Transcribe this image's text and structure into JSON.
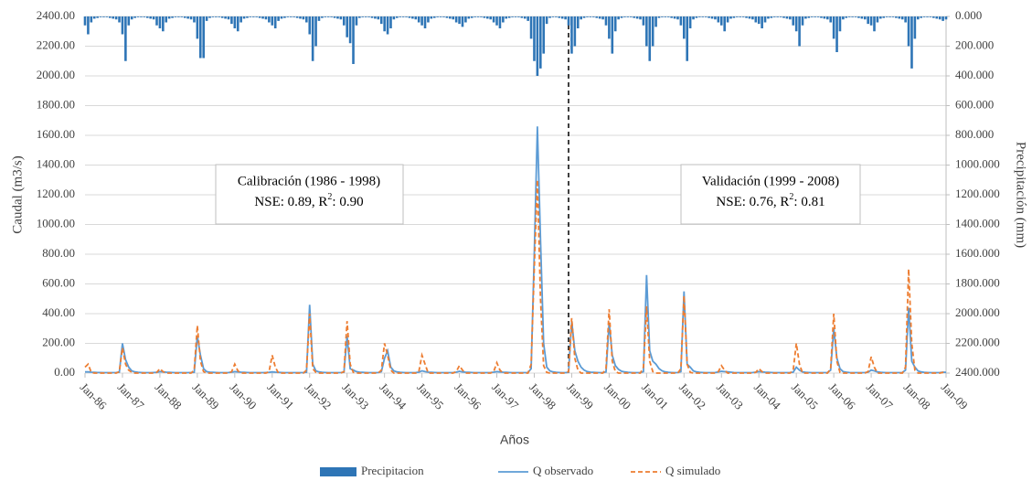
{
  "chart_data": {
    "type": "bar-line",
    "x_label": "Años",
    "y_label": "Caudal (m3/s)",
    "y2_label": "Precipitación (mm)",
    "annotations": [
      {
        "title": "Calibración (1986 - 1998)",
        "stats": [
          "NSE: 0.89, R",
          "2",
          ": 0.90"
        ]
      },
      {
        "title": "Validación (1999 - 2008)",
        "stats": [
          "NSE: 0.76, R",
          "2",
          ": 0.81"
        ]
      }
    ],
    "categories": [
      "Jan-86",
      null,
      null,
      null,
      null,
      null,
      null,
      null,
      null,
      null,
      null,
      null,
      "Jan-87",
      null,
      null,
      null,
      null,
      null,
      null,
      null,
      null,
      null,
      null,
      null,
      "Jan-88",
      null,
      null,
      null,
      null,
      null,
      null,
      null,
      null,
      null,
      null,
      null,
      "Jan-89",
      null,
      null,
      null,
      null,
      null,
      null,
      null,
      null,
      null,
      null,
      null,
      "Jan-90",
      null,
      null,
      null,
      null,
      null,
      null,
      null,
      null,
      null,
      null,
      null,
      "Jan-91",
      null,
      null,
      null,
      null,
      null,
      null,
      null,
      null,
      null,
      null,
      null,
      "Jan-92",
      null,
      null,
      null,
      null,
      null,
      null,
      null,
      null,
      null,
      null,
      null,
      "Jan-93",
      null,
      null,
      null,
      null,
      null,
      null,
      null,
      null,
      null,
      null,
      null,
      "Jan-94",
      null,
      null,
      null,
      null,
      null,
      null,
      null,
      null,
      null,
      null,
      null,
      "Jan-95",
      null,
      null,
      null,
      null,
      null,
      null,
      null,
      null,
      null,
      null,
      null,
      "Jan-96",
      null,
      null,
      null,
      null,
      null,
      null,
      null,
      null,
      null,
      null,
      null,
      "Jan-97",
      null,
      null,
      null,
      null,
      null,
      null,
      null,
      null,
      null,
      null,
      null,
      "Jan-98",
      null,
      null,
      null,
      null,
      null,
      null,
      null,
      null,
      null,
      null,
      null,
      "Jan-99",
      null,
      null,
      null,
      null,
      null,
      null,
      null,
      null,
      null,
      null,
      null,
      "Jan-00",
      null,
      null,
      null,
      null,
      null,
      null,
      null,
      null,
      null,
      null,
      null,
      "Jan-01",
      null,
      null,
      null,
      null,
      null,
      null,
      null,
      null,
      null,
      null,
      null,
      "Jan-02",
      null,
      null,
      null,
      null,
      null,
      null,
      null,
      null,
      null,
      null,
      null,
      "Jan-03",
      null,
      null,
      null,
      null,
      null,
      null,
      null,
      null,
      null,
      null,
      null,
      "Jan-04",
      null,
      null,
      null,
      null,
      null,
      null,
      null,
      null,
      null,
      null,
      null,
      "Jan-05",
      null,
      null,
      null,
      null,
      null,
      null,
      null,
      null,
      null,
      null,
      null,
      "Jan-06",
      null,
      null,
      null,
      null,
      null,
      null,
      null,
      null,
      null,
      null,
      null,
      "Jan-07",
      null,
      null,
      null,
      null,
      null,
      null,
      null,
      null,
      null,
      null,
      null,
      "Jan-08",
      null,
      null,
      null,
      null,
      null,
      null,
      null,
      null,
      null,
      null,
      null,
      "Jan-09"
    ],
    "series": [
      {
        "name": "Precipitacion",
        "kind": "bar",
        "axis": "y2",
        "color": "#2e75b6",
        "values": [
          60,
          120,
          40,
          15,
          10,
          5,
          5,
          5,
          10,
          15,
          20,
          40,
          120,
          300,
          60,
          20,
          10,
          5,
          5,
          5,
          10,
          15,
          20,
          60,
          80,
          100,
          40,
          15,
          10,
          5,
          5,
          5,
          10,
          15,
          20,
          40,
          150,
          280,
          280,
          30,
          10,
          5,
          5,
          5,
          10,
          15,
          20,
          50,
          80,
          100,
          40,
          15,
          10,
          5,
          5,
          5,
          10,
          15,
          20,
          40,
          60,
          80,
          30,
          15,
          10,
          5,
          5,
          5,
          10,
          15,
          20,
          40,
          120,
          300,
          200,
          30,
          10,
          5,
          5,
          5,
          10,
          15,
          20,
          60,
          140,
          180,
          320,
          60,
          10,
          5,
          5,
          5,
          10,
          15,
          20,
          50,
          100,
          120,
          80,
          20,
          10,
          5,
          5,
          5,
          10,
          15,
          20,
          40,
          60,
          80,
          40,
          15,
          10,
          5,
          5,
          5,
          10,
          15,
          20,
          40,
          50,
          70,
          40,
          15,
          10,
          5,
          5,
          5,
          10,
          15,
          20,
          40,
          60,
          80,
          40,
          15,
          10,
          5,
          5,
          5,
          10,
          15,
          30,
          150,
          300,
          400,
          350,
          250,
          50,
          10,
          5,
          5,
          10,
          15,
          20,
          60,
          250,
          200,
          80,
          20,
          10,
          5,
          5,
          5,
          10,
          15,
          20,
          60,
          150,
          250,
          100,
          20,
          10,
          5,
          5,
          5,
          10,
          15,
          20,
          60,
          200,
          300,
          200,
          70,
          10,
          5,
          5,
          5,
          10,
          15,
          20,
          60,
          150,
          300,
          80,
          20,
          10,
          5,
          5,
          5,
          10,
          15,
          20,
          40,
          60,
          100,
          40,
          15,
          10,
          5,
          5,
          5,
          10,
          15,
          20,
          40,
          50,
          80,
          40,
          15,
          10,
          5,
          5,
          5,
          10,
          15,
          20,
          60,
          100,
          200,
          60,
          15,
          10,
          5,
          5,
          5,
          10,
          15,
          20,
          40,
          150,
          240,
          100,
          20,
          10,
          5,
          5,
          5,
          10,
          15,
          20,
          50,
          60,
          100,
          40,
          15,
          10,
          5,
          5,
          5,
          10,
          15,
          20,
          40,
          200,
          350,
          150,
          20,
          10,
          5,
          5,
          5,
          10,
          15,
          20,
          30,
          20
        ]
      },
      {
        "name": "Q observado",
        "kind": "line",
        "color": "#5b9bd5",
        "values": [
          8,
          8,
          6,
          5,
          4,
          4,
          3,
          3,
          3,
          3,
          4,
          6,
          200,
          90,
          40,
          15,
          8,
          5,
          4,
          3,
          3,
          3,
          4,
          5,
          10,
          8,
          6,
          5,
          4,
          3,
          3,
          3,
          3,
          3,
          4,
          5,
          250,
          120,
          30,
          10,
          6,
          5,
          4,
          3,
          3,
          3,
          4,
          6,
          10,
          8,
          6,
          5,
          4,
          3,
          3,
          3,
          3,
          3,
          4,
          5,
          8,
          6,
          5,
          4,
          3,
          3,
          3,
          3,
          3,
          3,
          4,
          6,
          460,
          60,
          15,
          8,
          5,
          4,
          3,
          3,
          3,
          3,
          4,
          6,
          250,
          30,
          20,
          10,
          6,
          5,
          4,
          3,
          3,
          3,
          4,
          10,
          100,
          150,
          40,
          15,
          8,
          5,
          4,
          3,
          3,
          3,
          4,
          6,
          15,
          10,
          6,
          5,
          4,
          3,
          3,
          3,
          3,
          3,
          4,
          6,
          12,
          8,
          6,
          5,
          4,
          3,
          3,
          3,
          3,
          3,
          4,
          6,
          10,
          8,
          6,
          5,
          4,
          3,
          3,
          3,
          3,
          3,
          4,
          30,
          800,
          1660,
          900,
          200,
          40,
          15,
          8,
          5,
          4,
          3,
          3,
          5,
          350,
          150,
          80,
          40,
          20,
          10,
          6,
          5,
          4,
          3,
          4,
          8,
          340,
          120,
          50,
          25,
          12,
          8,
          5,
          4,
          3,
          3,
          4,
          10,
          660,
          150,
          80,
          60,
          30,
          15,
          8,
          5,
          4,
          3,
          4,
          10,
          550,
          60,
          40,
          15,
          8,
          5,
          4,
          3,
          3,
          3,
          4,
          8,
          12,
          10,
          8,
          6,
          4,
          3,
          3,
          3,
          3,
          3,
          4,
          6,
          10,
          8,
          6,
          5,
          4,
          3,
          3,
          3,
          3,
          3,
          4,
          6,
          40,
          20,
          8,
          5,
          4,
          3,
          3,
          3,
          3,
          3,
          4,
          20,
          300,
          100,
          30,
          10,
          6,
          4,
          3,
          3,
          3,
          3,
          4,
          6,
          20,
          15,
          8,
          5,
          4,
          3,
          3,
          3,
          3,
          3,
          4,
          20,
          440,
          80,
          40,
          15,
          8,
          5,
          4,
          3,
          3,
          3,
          4,
          6,
          5
        ]
      },
      {
        "name": "Q simulado",
        "kind": "dashed-line",
        "color": "#ed7d31",
        "values": [
          40,
          60,
          5,
          0,
          0,
          0,
          0,
          0,
          0,
          0,
          0,
          10,
          170,
          60,
          20,
          5,
          0,
          0,
          0,
          0,
          0,
          0,
          0,
          5,
          30,
          10,
          0,
          0,
          0,
          0,
          0,
          0,
          0,
          0,
          0,
          20,
          320,
          80,
          10,
          0,
          0,
          0,
          0,
          0,
          0,
          0,
          0,
          10,
          60,
          15,
          0,
          0,
          0,
          0,
          0,
          0,
          0,
          0,
          0,
          10,
          120,
          40,
          0,
          0,
          0,
          0,
          0,
          0,
          0,
          0,
          0,
          20,
          400,
          30,
          5,
          0,
          0,
          0,
          0,
          0,
          0,
          0,
          0,
          10,
          350,
          60,
          5,
          0,
          0,
          0,
          0,
          0,
          0,
          0,
          0,
          20,
          200,
          120,
          20,
          0,
          0,
          0,
          0,
          0,
          0,
          0,
          0,
          10,
          120,
          60,
          0,
          0,
          0,
          0,
          0,
          0,
          0,
          0,
          0,
          10,
          50,
          20,
          0,
          0,
          0,
          0,
          0,
          0,
          0,
          0,
          0,
          10,
          70,
          20,
          0,
          0,
          0,
          0,
          0,
          0,
          0,
          0,
          0,
          60,
          700,
          1300,
          500,
          50,
          5,
          0,
          0,
          0,
          0,
          0,
          0,
          10,
          370,
          100,
          20,
          0,
          0,
          0,
          0,
          0,
          0,
          0,
          0,
          30,
          430,
          80,
          10,
          0,
          0,
          0,
          0,
          0,
          0,
          0,
          0,
          40,
          450,
          80,
          10,
          0,
          0,
          0,
          0,
          0,
          0,
          0,
          0,
          30,
          520,
          60,
          5,
          0,
          0,
          0,
          0,
          0,
          0,
          0,
          0,
          10,
          50,
          20,
          0,
          0,
          0,
          0,
          0,
          0,
          0,
          0,
          0,
          5,
          30,
          10,
          0,
          0,
          0,
          0,
          0,
          0,
          0,
          0,
          0,
          20,
          200,
          60,
          0,
          0,
          0,
          0,
          0,
          0,
          0,
          0,
          0,
          30,
          400,
          80,
          5,
          0,
          0,
          0,
          0,
          0,
          0,
          0,
          0,
          10,
          110,
          40,
          0,
          0,
          0,
          0,
          0,
          0,
          0,
          0,
          0,
          40,
          700,
          200,
          20,
          0,
          0,
          0,
          0,
          0,
          0,
          0,
          0,
          5,
          0
        ]
      }
    ],
    "ylim": [
      0,
      2400
    ],
    "yticks": [
      {
        "value": 0,
        "label": "0.00"
      },
      {
        "value": 200,
        "label": "200.00"
      },
      {
        "value": 400,
        "label": "400.00"
      },
      {
        "value": 600,
        "label": "600.00"
      },
      {
        "value": 800,
        "label": "800.00"
      },
      {
        "value": 1000,
        "label": "1000.00"
      },
      {
        "value": 1200,
        "label": "1200.00"
      },
      {
        "value": 1400,
        "label": "1400.00"
      },
      {
        "value": 1600,
        "label": "1600.00"
      },
      {
        "value": 1800,
        "label": "1800.00"
      },
      {
        "value": 2000,
        "label": "2000.00"
      },
      {
        "value": 2200,
        "label": "2200.00"
      },
      {
        "value": 2400,
        "label": "2400.00"
      }
    ],
    "y2lim": [
      2400,
      0
    ],
    "y2ticks": [
      {
        "value": 0,
        "label": "0.000"
      },
      {
        "value": 200,
        "label": "200.000"
      },
      {
        "value": 400,
        "label": "400.000"
      },
      {
        "value": 600,
        "label": "600.000"
      },
      {
        "value": 800,
        "label": "800.000"
      },
      {
        "value": 1000,
        "label": "1000.000"
      },
      {
        "value": 1200,
        "label": "1200.000"
      },
      {
        "value": 1400,
        "label": "1400.000"
      },
      {
        "value": 1600,
        "label": "1600.000"
      },
      {
        "value": 1800,
        "label": "1800.000"
      },
      {
        "value": 2000,
        "label": "2000.000"
      },
      {
        "value": 2200,
        "label": "2200.000"
      },
      {
        "value": 2400,
        "label": "2400.000"
      }
    ],
    "grid": true
  }
}
